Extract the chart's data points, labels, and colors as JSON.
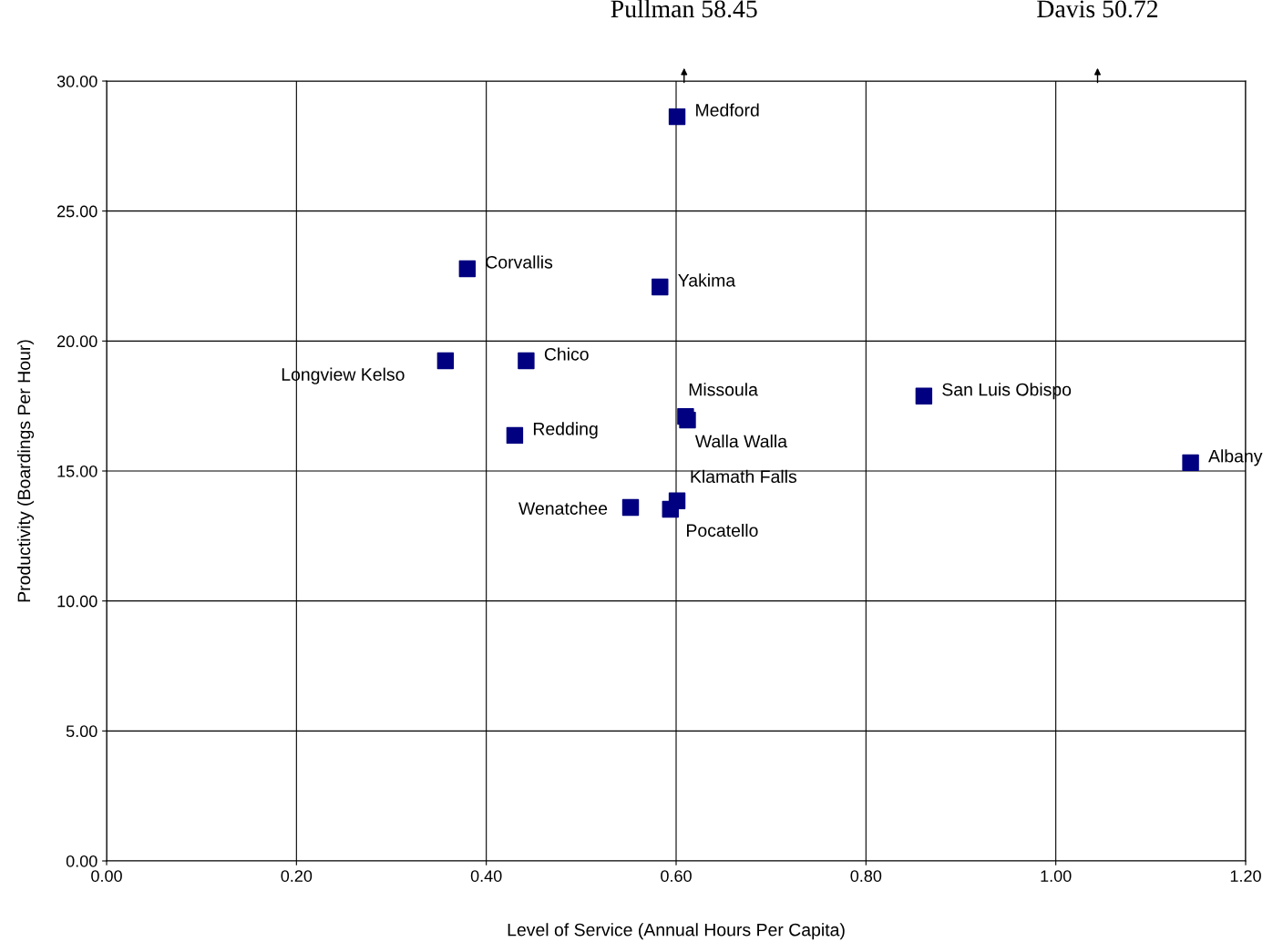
{
  "chart_data": {
    "type": "scatter",
    "xlabel": "Level of Service (Annual Hours Per Capita)",
    "ylabel": "Productivity (Boardings Per Hour)",
    "x": [
      0.601,
      0.38,
      0.583,
      0.357,
      0.442,
      0.61,
      0.612,
      0.43,
      0.861,
      1.142,
      0.601,
      0.594,
      0.552
    ],
    "series": [
      {
        "color": "#000080",
        "values": [
          28.63,
          22.78,
          22.08,
          19.24,
          19.24,
          17.1,
          16.96,
          16.37,
          17.88,
          15.32,
          13.85,
          13.53,
          13.6
        ]
      }
    ],
    "annotations": [
      {
        "text": "Medford",
        "x": 0.601,
        "y": 28.63
      },
      {
        "text": "Corvallis",
        "x": 0.38,
        "y": 22.78
      },
      {
        "text": "Yakima",
        "x": 0.583,
        "y": 22.08
      },
      {
        "text": "Longview Kelso",
        "x": 0.357,
        "y": 19.24
      },
      {
        "text": "Chico",
        "x": 0.442,
        "y": 19.24
      },
      {
        "text": "Missoula",
        "x": 0.61,
        "y": 17.1
      },
      {
        "text": "Walla Walla",
        "x": 0.612,
        "y": 16.96
      },
      {
        "text": "Redding",
        "x": 0.43,
        "y": 16.37
      },
      {
        "text": "San Luis Obispo",
        "x": 0.861,
        "y": 17.88
      },
      {
        "text": "Albany",
        "x": 1.142,
        "y": 15.32
      },
      {
        "text": "Klamath Falls",
        "x": 0.601,
        "y": 13.85
      },
      {
        "text": "Pocatello",
        "x": 0.594,
        "y": 13.53
      },
      {
        "text": "Wenatchee",
        "x": 0.552,
        "y": 13.6
      },
      "Pullman 58.45",
      "Davis 50.72"
    ],
    "xlim": [
      0,
      1.2
    ],
    "ylim": [
      0,
      30
    ],
    "xticks": [
      {
        "value": 0,
        "label": "0.00"
      },
      {
        "value": 0.2,
        "label": "0.20"
      },
      {
        "value": 0.4,
        "label": "0.40"
      },
      {
        "value": 0.6,
        "label": "0.60"
      },
      {
        "value": 0.8,
        "label": "0.80"
      },
      {
        "value": 1.0,
        "label": "1.00"
      },
      {
        "value": 1.2,
        "label": "1.20"
      }
    ],
    "yticks": [
      {
        "value": 0,
        "label": "0.00"
      },
      {
        "value": 5,
        "label": "5.00"
      },
      {
        "value": 10,
        "label": "10.00"
      },
      {
        "value": 15,
        "label": "15.00"
      },
      {
        "value": 20,
        "label": "20.00"
      },
      {
        "value": 25,
        "label": "25.00"
      },
      {
        "value": 30,
        "label": "30.00"
      }
    ],
    "grid": true,
    "marker": "square"
  }
}
